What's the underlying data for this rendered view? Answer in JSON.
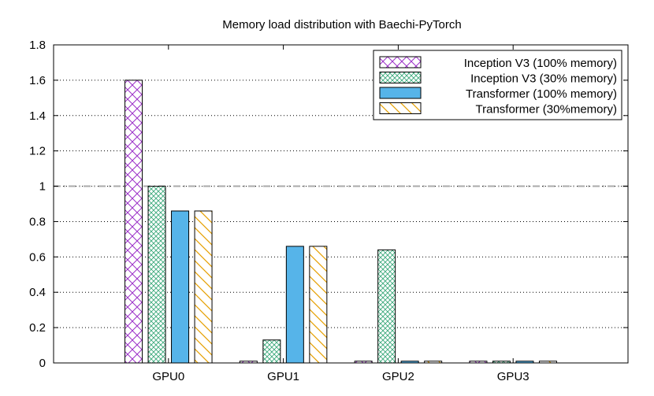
{
  "chart_data": {
    "type": "bar",
    "title": "Memory load distribution with Baechi-PyTorch",
    "xlabel": "",
    "ylabel": "",
    "categories": [
      "GPU0",
      "GPU1",
      "GPU2",
      "GPU3"
    ],
    "ylim": [
      0,
      1.8
    ],
    "yticks": [
      "0",
      "0.2",
      "0.4",
      "0.6",
      "0.8",
      "1",
      "1.2",
      "1.4",
      "1.6",
      "1.8"
    ],
    "grid": "horizontal dotted",
    "reference_line": 1.0,
    "legend_position": "top-right",
    "series": [
      {
        "name": "Inception V3 (100% memory)",
        "values": [
          1.6,
          0.01,
          0.01,
          0.01
        ],
        "color": "#9b30c8",
        "pattern": "crosshatch-diagonal"
      },
      {
        "name": "Inception V3 (30% memory)",
        "values": [
          1.0,
          0.13,
          0.64,
          0.01
        ],
        "color": "#3aa87a",
        "pattern": "fine-crosshatch"
      },
      {
        "name": "Transformer (100% memory)",
        "values": [
          0.86,
          0.66,
          0.01,
          0.01
        ],
        "color": "#56b4e9",
        "pattern": "solid"
      },
      {
        "name": "Transformer (30%memory)",
        "values": [
          0.86,
          0.66,
          0.01,
          0.01
        ],
        "color": "#e69f00",
        "pattern": "diagonal"
      }
    ]
  }
}
